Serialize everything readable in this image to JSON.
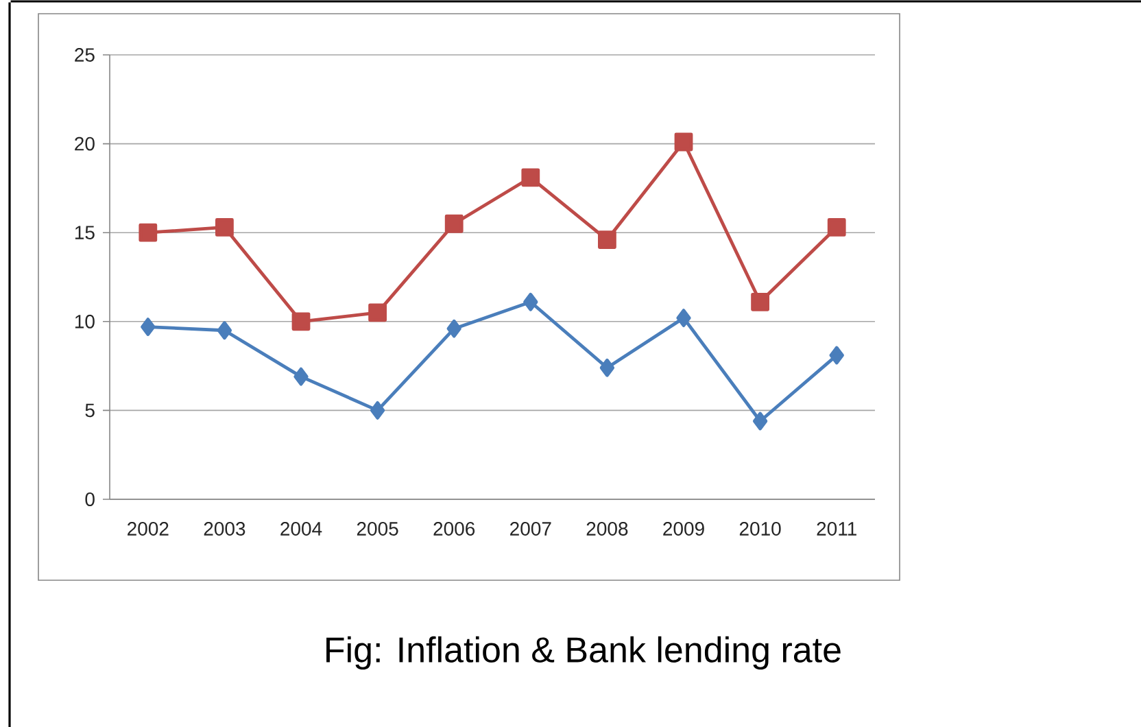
{
  "chart_data": {
    "type": "line",
    "categories": [
      "2002",
      "2003",
      "2004",
      "2005",
      "2006",
      "2007",
      "2008",
      "2009",
      "2010",
      "2011"
    ],
    "series": [
      {
        "color": "#4a7ebb",
        "marker": "diamond",
        "values": [
          9.7,
          9.5,
          6.9,
          5.0,
          9.6,
          11.1,
          7.4,
          10.2,
          4.4,
          8.1
        ]
      },
      {
        "color": "#be4b48",
        "marker": "square",
        "values": [
          15.0,
          15.3,
          10.0,
          10.5,
          15.5,
          18.1,
          14.6,
          20.1,
          11.1,
          15.3
        ]
      }
    ],
    "ylim": [
      0,
      25
    ],
    "yticks": [
      0,
      5,
      10,
      15,
      20,
      25
    ],
    "grid": "y",
    "annotations": [
      "Fig: Inflation & Bank lending rate"
    ]
  }
}
